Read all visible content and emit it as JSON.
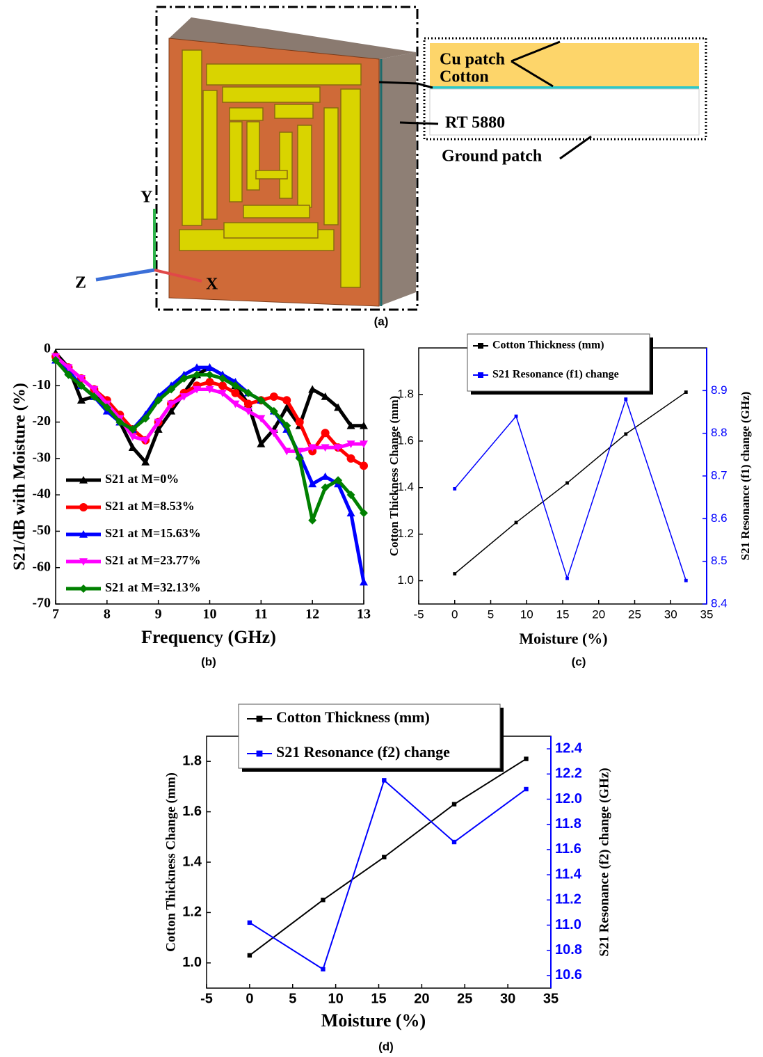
{
  "diagram": {
    "axes": {
      "y": "Y",
      "z": "Z",
      "x": "X"
    },
    "layers": {
      "cu_patch": "Cu patch",
      "cotton": "Cotton",
      "substrate": "RT 5880",
      "ground": "Ground patch"
    },
    "panel_label": "(a)"
  },
  "chart_data": [
    {
      "type": "line",
      "panel_label": "(b)",
      "x_label": "Frequency (GHz)",
      "y_label": "S21/dB with Moisture (%)",
      "x": [
        7,
        7.25,
        7.5,
        7.75,
        8,
        8.25,
        8.5,
        8.75,
        9,
        9.25,
        9.5,
        9.75,
        10,
        10.25,
        10.5,
        10.75,
        11,
        11.25,
        11.5,
        11.75,
        12,
        12.25,
        12.5,
        12.75,
        13
      ],
      "xlim": [
        7,
        13
      ],
      "xticks": [
        7,
        8,
        9,
        10,
        11,
        12,
        13
      ],
      "ylim": [
        -70,
        0
      ],
      "yticks": [
        0,
        -10,
        -20,
        -30,
        -40,
        -50,
        -60,
        -70
      ],
      "legend": "lower left",
      "legend_frame": false,
      "series": [
        {
          "name": "S21 at M=0%",
          "color": "#000000",
          "marker": "triangle",
          "values": [
            -1,
            -5,
            -14,
            -13,
            -15,
            -20,
            -27,
            -31,
            -22,
            -17,
            -12,
            -7,
            -5,
            -7,
            -10,
            -15,
            -26,
            -22,
            -16,
            -21,
            -11,
            -13,
            -16,
            -21,
            -21
          ]
        },
        {
          "name": "S21 at M=8.53%",
          "color": "#ff0000",
          "marker": "circle",
          "values": [
            -2,
            -5,
            -8,
            -11,
            -14,
            -18,
            -22,
            -25,
            -20,
            -15,
            -12,
            -10,
            -9,
            -10,
            -12,
            -15,
            -14,
            -13,
            -14,
            -20,
            -28,
            -23,
            -27,
            -30,
            -32
          ]
        },
        {
          "name": "S21 at M=15.63%",
          "color": "#0000ff",
          "marker": "triangle",
          "values": [
            -3,
            -6,
            -10,
            -13,
            -17,
            -20,
            -22,
            -18,
            -13,
            -10,
            -7,
            -5,
            -5,
            -7,
            -9,
            -12,
            -14,
            -17,
            -22,
            -29,
            -37,
            -35,
            -37,
            -45,
            -64
          ]
        },
        {
          "name": "S21 at M=23.77%",
          "color": "#ff00ff",
          "marker": "triangle-down",
          "values": [
            -2,
            -5,
            -8,
            -11,
            -15,
            -19,
            -24,
            -25,
            -20,
            -15,
            -13,
            -11,
            -11,
            -12,
            -15,
            -17,
            -19,
            -23,
            -28,
            -28,
            -27,
            -27,
            -27,
            -26,
            -26
          ]
        },
        {
          "name": "S21 at M=32.13%",
          "color": "#008000",
          "marker": "diamond",
          "values": [
            -3,
            -7,
            -10,
            -13,
            -16,
            -20,
            -22,
            -19,
            -14,
            -11,
            -8,
            -7,
            -7,
            -8,
            -10,
            -12,
            -14,
            -17,
            -21,
            -30,
            -47,
            -38,
            -36,
            -40,
            -45
          ]
        }
      ]
    },
    {
      "type": "line",
      "panel_label": "(c)",
      "x_label": "Moisture (%)",
      "y_label": "Cotton Thickness Change (mm)",
      "y2_label": "S21 Resonance (f1) change (GHz)",
      "x": [
        0,
        8.53,
        15.63,
        23.77,
        32.13
      ],
      "xlim": [
        -5,
        35
      ],
      "xticks": [
        -5,
        0,
        5,
        10,
        15,
        20,
        25,
        30,
        35
      ],
      "ylim": [
        0.9,
        2.0
      ],
      "yticks": [
        {
          "value": 1.0,
          "label": "1.0"
        },
        1.2,
        1.4,
        1.6,
        1.8
      ],
      "y2lim": [
        8.4,
        9.0
      ],
      "y2ticks": [
        8.4,
        8.5,
        8.6,
        8.7,
        8.8,
        8.9
      ],
      "legend": "upper center",
      "legend_frame": true,
      "series": [
        {
          "name": "Cotton Thickness (mm)",
          "color": "#000000",
          "marker": "square",
          "values": [
            1.03,
            1.25,
            1.42,
            1.63,
            1.81
          ]
        },
        {
          "name": "S21 Resonance (f1) change",
          "color": "#0000ff",
          "marker": "square",
          "axis": "y2",
          "values": [
            8.67,
            8.84,
            8.46,
            8.88,
            8.455
          ]
        }
      ]
    },
    {
      "type": "line",
      "panel_label": "(d)",
      "x_label": "Moisture (%)",
      "y_label": "Cotton Thickness Change (mm)",
      "y2_label": "S21 Resonance (f2) change (GHz)",
      "x": [
        0,
        8.53,
        15.63,
        23.77,
        32.13
      ],
      "xlim": [
        -5,
        35
      ],
      "xticks": [
        -5,
        0,
        5,
        10,
        15,
        20,
        25,
        30,
        35
      ],
      "ylim": [
        0.9,
        1.9
      ],
      "yticks": [
        {
          "value": 1.0,
          "label": "1.0"
        },
        1.2,
        1.4,
        1.6,
        1.8
      ],
      "y2lim": [
        10.5,
        12.5
      ],
      "y2ticks": [
        10.6,
        10.8,
        {
          "value": 11.0,
          "label": "11.0"
        },
        11.2,
        11.4,
        11.6,
        11.8,
        {
          "value": 12.0,
          "label": "12.0"
        },
        12.2,
        12.4
      ],
      "legend": "upper center",
      "legend_frame": true,
      "series": [
        {
          "name": "Cotton Thickness (mm)",
          "color": "#000000",
          "marker": "square",
          "values": [
            1.03,
            1.25,
            1.42,
            1.63,
            1.81
          ]
        },
        {
          "name": "S21 Resonance (f2) change",
          "color": "#0000ff",
          "marker": "square",
          "axis": "y2",
          "values": [
            11.02,
            10.65,
            12.15,
            11.66,
            12.08
          ]
        }
      ]
    }
  ]
}
